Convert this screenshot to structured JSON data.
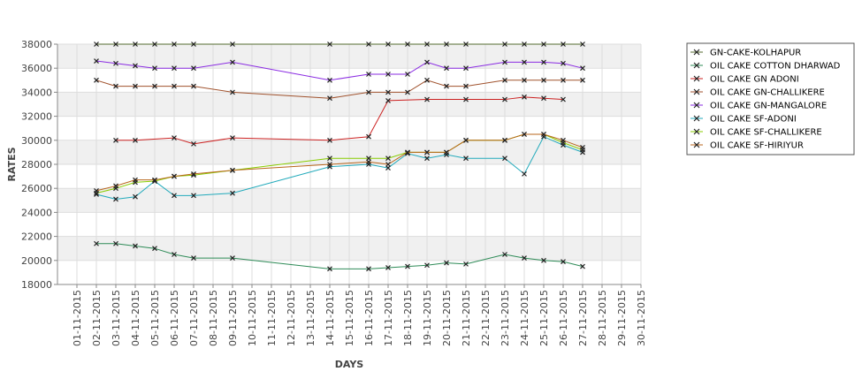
{
  "chart_data": {
    "type": "line",
    "title": "",
    "xlabel": "DAYS",
    "ylabel": "RATES",
    "ylim": [
      18000,
      38000
    ],
    "y_ticks": [
      18000,
      20000,
      22000,
      24000,
      26000,
      28000,
      30000,
      32000,
      34000,
      36000,
      38000
    ],
    "x_categories": [
      "01-11-2015",
      "02-11-2015",
      "03-11-2015",
      "04-11-2015",
      "05-11-2015",
      "06-11-2015",
      "07-11-2015",
      "08-11-2015",
      "09-11-2015",
      "10-11-2015",
      "11-11-2015",
      "12-11-2015",
      "13-11-2015",
      "14-11-2015",
      "15-11-2015",
      "16-11-2015",
      "17-11-2015",
      "18-11-2015",
      "19-11-2015",
      "20-11-2015",
      "21-11-2015",
      "22-11-2015",
      "23-11-2015",
      "24-11-2015",
      "25-11-2015",
      "26-11-2015",
      "27-11-2015",
      "28-11-2015",
      "29-11-2015",
      "30-11-2015"
    ],
    "grid": true,
    "legend_position": "right",
    "series": [
      {
        "name": "GN-CAKE-KOLHAPUR",
        "color": "#556b2f",
        "points": [
          [
            "02-11-2015",
            38000
          ],
          [
            "03-11-2015",
            38000
          ],
          [
            "04-11-2015",
            38000
          ],
          [
            "05-11-2015",
            38000
          ],
          [
            "06-11-2015",
            38000
          ],
          [
            "07-11-2015",
            38000
          ],
          [
            "09-11-2015",
            38000
          ],
          [
            "14-11-2015",
            38000
          ],
          [
            "16-11-2015",
            38000
          ],
          [
            "17-11-2015",
            38000
          ],
          [
            "18-11-2015",
            38000
          ],
          [
            "19-11-2015",
            38000
          ],
          [
            "20-11-2015",
            38000
          ],
          [
            "21-11-2015",
            38000
          ],
          [
            "23-11-2015",
            38000
          ],
          [
            "24-11-2015",
            38000
          ],
          [
            "25-11-2015",
            38000
          ],
          [
            "26-11-2015",
            38000
          ],
          [
            "27-11-2015",
            38000
          ]
        ]
      },
      {
        "name": "OIL CAKE COTTON DHARWAD",
        "color": "#2e8b57",
        "points": [
          [
            "02-11-2015",
            21400
          ],
          [
            "03-11-2015",
            21400
          ],
          [
            "04-11-2015",
            21200
          ],
          [
            "05-11-2015",
            21000
          ],
          [
            "06-11-2015",
            20500
          ],
          [
            "07-11-2015",
            20200
          ],
          [
            "09-11-2015",
            20200
          ],
          [
            "14-11-2015",
            19300
          ],
          [
            "16-11-2015",
            19300
          ],
          [
            "17-11-2015",
            19400
          ],
          [
            "18-11-2015",
            19500
          ],
          [
            "19-11-2015",
            19600
          ],
          [
            "20-11-2015",
            19800
          ],
          [
            "21-11-2015",
            19700
          ],
          [
            "23-11-2015",
            20500
          ],
          [
            "24-11-2015",
            20200
          ],
          [
            "25-11-2015",
            20000
          ],
          [
            "26-11-2015",
            19900
          ],
          [
            "27-11-2015",
            19500
          ]
        ]
      },
      {
        "name": "OIL CAKE GN ADONI",
        "color": "#cc2222",
        "points": [
          [
            "03-11-2015",
            30000
          ],
          [
            "04-11-2015",
            30000
          ],
          [
            "06-11-2015",
            30200
          ],
          [
            "07-11-2015",
            29700
          ],
          [
            "09-11-2015",
            30200
          ],
          [
            "14-11-2015",
            30000
          ],
          [
            "16-11-2015",
            30300
          ],
          [
            "17-11-2015",
            33300
          ],
          [
            "19-11-2015",
            33400
          ],
          [
            "21-11-2015",
            33400
          ],
          [
            "23-11-2015",
            33400
          ],
          [
            "24-11-2015",
            33600
          ],
          [
            "25-11-2015",
            33500
          ],
          [
            "26-11-2015",
            33400
          ]
        ]
      },
      {
        "name": "OIL CAKE GN-CHALLIKERE",
        "color": "#a0522d",
        "points": [
          [
            "02-11-2015",
            35000
          ],
          [
            "03-11-2015",
            34500
          ],
          [
            "04-11-2015",
            34500
          ],
          [
            "05-11-2015",
            34500
          ],
          [
            "06-11-2015",
            34500
          ],
          [
            "07-11-2015",
            34500
          ],
          [
            "09-11-2015",
            34000
          ],
          [
            "14-11-2015",
            33500
          ],
          [
            "16-11-2015",
            34000
          ],
          [
            "17-11-2015",
            34000
          ],
          [
            "18-11-2015",
            34000
          ],
          [
            "19-11-2015",
            35000
          ],
          [
            "20-11-2015",
            34500
          ],
          [
            "21-11-2015",
            34500
          ],
          [
            "23-11-2015",
            35000
          ],
          [
            "24-11-2015",
            35000
          ],
          [
            "25-11-2015",
            35000
          ],
          [
            "26-11-2015",
            35000
          ],
          [
            "27-11-2015",
            35000
          ]
        ]
      },
      {
        "name": "OIL CAKE GN-MANGALORE",
        "color": "#8a2be2",
        "points": [
          [
            "02-11-2015",
            36600
          ],
          [
            "03-11-2015",
            36400
          ],
          [
            "04-11-2015",
            36200
          ],
          [
            "05-11-2015",
            36000
          ],
          [
            "06-11-2015",
            36000
          ],
          [
            "07-11-2015",
            36000
          ],
          [
            "09-11-2015",
            36500
          ],
          [
            "14-11-2015",
            35000
          ],
          [
            "16-11-2015",
            35500
          ],
          [
            "17-11-2015",
            35500
          ],
          [
            "18-11-2015",
            35500
          ],
          [
            "19-11-2015",
            36500
          ],
          [
            "20-11-2015",
            36000
          ],
          [
            "21-11-2015",
            36000
          ],
          [
            "23-11-2015",
            36500
          ],
          [
            "24-11-2015",
            36500
          ],
          [
            "25-11-2015",
            36500
          ],
          [
            "26-11-2015",
            36400
          ],
          [
            "27-11-2015",
            36000
          ]
        ]
      },
      {
        "name": "OIL CAKE SF-ADONI",
        "color": "#22aabb",
        "points": [
          [
            "02-11-2015",
            25500
          ],
          [
            "03-11-2015",
            25100
          ],
          [
            "04-11-2015",
            25300
          ],
          [
            "05-11-2015",
            26600
          ],
          [
            "06-11-2015",
            25400
          ],
          [
            "07-11-2015",
            25400
          ],
          [
            "09-11-2015",
            25600
          ],
          [
            "14-11-2015",
            27800
          ],
          [
            "16-11-2015",
            28000
          ],
          [
            "17-11-2015",
            27700
          ],
          [
            "18-11-2015",
            28900
          ],
          [
            "19-11-2015",
            28500
          ],
          [
            "20-11-2015",
            28800
          ],
          [
            "21-11-2015",
            28500
          ],
          [
            "23-11-2015",
            28500
          ],
          [
            "24-11-2015",
            27200
          ],
          [
            "25-11-2015",
            30300
          ],
          [
            "26-11-2015",
            29600
          ],
          [
            "27-11-2015",
            29000
          ]
        ]
      },
      {
        "name": "OIL CAKE SF-CHALLIKERE",
        "color": "#88cc00",
        "points": [
          [
            "02-11-2015",
            25600
          ],
          [
            "03-11-2015",
            26000
          ],
          [
            "04-11-2015",
            26500
          ],
          [
            "05-11-2015",
            26600
          ],
          [
            "06-11-2015",
            27000
          ],
          [
            "07-11-2015",
            27100
          ],
          [
            "09-11-2015",
            27500
          ],
          [
            "14-11-2015",
            28500
          ],
          [
            "16-11-2015",
            28500
          ],
          [
            "17-11-2015",
            28500
          ],
          [
            "18-11-2015",
            29000
          ],
          [
            "19-11-2015",
            29000
          ],
          [
            "20-11-2015",
            29000
          ],
          [
            "21-11-2015",
            30000
          ],
          [
            "23-11-2015",
            30000
          ],
          [
            "24-11-2015",
            30500
          ],
          [
            "25-11-2015",
            30500
          ],
          [
            "26-11-2015",
            29800
          ],
          [
            "27-11-2015",
            29200
          ]
        ]
      },
      {
        "name": "OIL CAKE SF-HIRIYUR",
        "color": "#b8651b",
        "points": [
          [
            "02-11-2015",
            25800
          ],
          [
            "03-11-2015",
            26200
          ],
          [
            "04-11-2015",
            26700
          ],
          [
            "05-11-2015",
            26700
          ],
          [
            "06-11-2015",
            27000
          ],
          [
            "07-11-2015",
            27200
          ],
          [
            "09-11-2015",
            27500
          ],
          [
            "14-11-2015",
            28000
          ],
          [
            "16-11-2015",
            28200
          ],
          [
            "17-11-2015",
            28000
          ],
          [
            "18-11-2015",
            29000
          ],
          [
            "19-11-2015",
            29000
          ],
          [
            "20-11-2015",
            29000
          ],
          [
            "21-11-2015",
            30000
          ],
          [
            "23-11-2015",
            30000
          ],
          [
            "24-11-2015",
            30500
          ],
          [
            "25-11-2015",
            30500
          ],
          [
            "26-11-2015",
            30000
          ],
          [
            "27-11-2015",
            29400
          ]
        ]
      }
    ]
  }
}
